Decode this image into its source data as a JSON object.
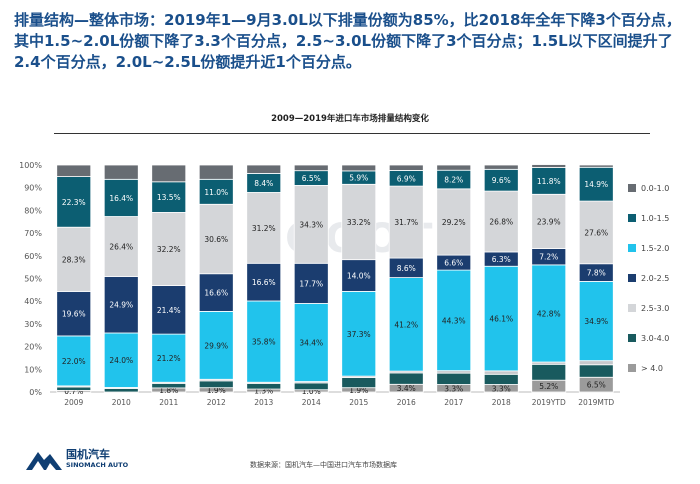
{
  "headline": "排量结构—整体市场：2019年1—9月3.0L以下排量份额为85%，比2018年全年下降3个百分点，其中1.5~2.0L份额下降了3.3个百分点，2.5~3.0L份额下降了3个百分点；1.5L以下区间提升了2.4个百分点，2.0L~2.5L份额提升近1个百分点。",
  "footer": {
    "brand_cn": "国机汽车",
    "brand_en": "SINOMACH AUTO",
    "source": "数据来源：国机汽车—中国进口汽车市场数据库"
  },
  "chart_data": {
    "type": "bar",
    "stacked": true,
    "title": "2009—2019年进口车市场排量结构变化",
    "categories": [
      "2009",
      "2010",
      "2011",
      "2012",
      "2013",
      "2014",
      "2015",
      "2016",
      "2017",
      "2018",
      "2019YTD",
      "2019MTD"
    ],
    "ylim": [
      0,
      100
    ],
    "yticks": [
      "0%",
      "10%",
      "20%",
      "30%",
      "40%",
      "50%",
      "60%",
      "70%",
      "80%",
      "90%",
      "100%"
    ],
    "legend_position": "right",
    "watermark": "YOOOT",
    "series": [
      {
        "name": "> 4.0",
        "color": "#9b9b9b",
        "values": [
          0.7,
          0.0,
          1.8,
          1.9,
          1.3,
          1.0,
          1.9,
          3.4,
          3.3,
          3.3,
          5.2,
          6.5
        ],
        "labels": [
          "0.7%",
          "0.0%",
          "1.8%",
          "1.9%",
          "1.3%",
          "1.0%",
          "1.9%",
          "3.4%",
          "3.3%",
          "3.3%",
          "5.2%",
          "6.5%"
        ]
      },
      {
        "name": "3.0-4.0",
        "color": "#195a5e",
        "values": [
          1.5,
          1.5,
          2.0,
          3.0,
          2.5,
          3.0,
          4.5,
          5.0,
          5.0,
          4.5,
          7.0,
          5.5
        ],
        "labels": [
          "",
          "",
          "",
          "",
          "",
          "",
          "",
          "",
          "",
          "",
          "",
          ""
        ]
      },
      {
        "name": "2.5-3.0",
        "color": "#c6c8cc",
        "values": [
          0.5,
          0.5,
          0.5,
          0.7,
          0.5,
          0.6,
          0.6,
          0.8,
          1.1,
          1.5,
          1.0,
          1.8
        ],
        "labels": [
          "",
          "",
          "",
          "",
          "",
          "",
          "",
          "",
          "",
          "",
          "",
          ""
        ]
      },
      {
        "name": "1.5-2.0",
        "color": "#21c3ec",
        "values": [
          22.0,
          24.0,
          21.2,
          29.9,
          35.8,
          34.4,
          37.3,
          41.2,
          44.3,
          46.1,
          42.8,
          34.9
        ],
        "labels": [
          "22.0%",
          "24.0%",
          "21.2%",
          "29.9%",
          "35.8%",
          "34.4%",
          "37.3%",
          "41.2%",
          "44.3%",
          "46.1%",
          "42.8%",
          "34.9%"
        ]
      },
      {
        "name": "2.0-2.5",
        "color": "#1b3d6f",
        "values": [
          19.6,
          24.9,
          21.4,
          16.6,
          16.6,
          17.7,
          14.0,
          8.6,
          6.6,
          6.3,
          7.2,
          7.8
        ],
        "labels": [
          "19.6%",
          "24.9%",
          "21.4%",
          "16.6%",
          "16.6%",
          "17.7%",
          "14.0%",
          "8.6%",
          "6.6%",
          "6.3%",
          "7.2%",
          "7.8%"
        ]
      },
      {
        "name": "2.5-3.0",
        "color": "#d4d6d9",
        "values": [
          28.3,
          26.4,
          32.2,
          30.6,
          31.2,
          34.3,
          33.2,
          31.7,
          29.2,
          26.8,
          23.9,
          27.6
        ],
        "labels": [
          "28.3%",
          "26.4%",
          "32.2%",
          "30.6%",
          "31.2%",
          "34.3%",
          "33.2%",
          "31.7%",
          "29.2%",
          "26.8%",
          "23.9%",
          "27.6%"
        ]
      },
      {
        "name": "1.0-1.5",
        "color": "#0c5e72",
        "values": [
          22.3,
          16.4,
          13.5,
          11.0,
          8.4,
          6.5,
          5.9,
          6.9,
          8.2,
          9.6,
          11.8,
          14.9
        ],
        "labels": [
          "22.3%",
          "16.4%",
          "13.5%",
          "11.0%",
          "8.4%",
          "6.5%",
          "5.9%",
          "6.9%",
          "8.2%",
          "9.6%",
          "11.8%",
          "14.9%"
        ]
      },
      {
        "name": "0.0-1.0",
        "color": "#676c72",
        "values": [
          5.1,
          6.3,
          7.4,
          6.3,
          3.7,
          2.5,
          2.6,
          2.4,
          2.3,
          1.9,
          1.3,
          1.0
        ],
        "labels": [
          "",
          "",
          "",
          "",
          "",
          "",
          "",
          "",
          "",
          "",
          "",
          ""
        ]
      }
    ],
    "legend": [
      {
        "name": "0.0-1.0",
        "color": "#676c72"
      },
      {
        "name": "1.0-1.5",
        "color": "#0c5e72"
      },
      {
        "name": "1.5-2.0",
        "color": "#21c3ec"
      },
      {
        "name": "2.0-2.5",
        "color": "#1b3d6f"
      },
      {
        "name": "2.5-3.0",
        "color": "#d4d6d9"
      },
      {
        "name": "3.0-4.0",
        "color": "#195a5e"
      },
      {
        "name": "> 4.0",
        "color": "#9b9b9b"
      }
    ]
  }
}
